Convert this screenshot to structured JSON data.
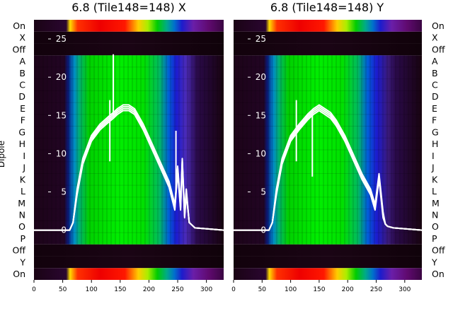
{
  "chart_data": [
    {
      "type": "heatmap",
      "title": "6.8 (Tile148=148) X",
      "ylabel": "Dipole",
      "row_labels": [
        "On",
        "X",
        "Off",
        "A",
        "B",
        "C",
        "D",
        "E",
        "F",
        "G",
        "H",
        "I",
        "J",
        "K",
        "L",
        "M",
        "N",
        "O",
        "P",
        "Off",
        "Y",
        "On"
      ],
      "xticks": [
        0,
        50,
        100,
        150,
        200,
        250,
        300
      ],
      "xlim": [
        0,
        330
      ],
      "overlay_yticks": [
        0,
        5,
        10,
        15,
        20,
        25
      ],
      "overlay_ylim": [
        -6.5,
        27.5
      ],
      "overlay_line": {
        "color": "#ffffff",
        "x": [
          0,
          62,
          68,
          75,
          85,
          100,
          115,
          130,
          138,
          145,
          155,
          165,
          175,
          190,
          205,
          220,
          235,
          245,
          250,
          255,
          258,
          262,
          265,
          270,
          280,
          330
        ],
        "y": [
          0,
          0,
          1,
          5,
          9,
          12,
          13.5,
          14.5,
          15,
          15.5,
          16,
          16,
          15.5,
          13.5,
          11,
          8.5,
          6,
          3,
          8,
          3,
          9,
          2,
          5,
          1,
          0.3,
          0
        ],
        "spikes": [
          {
            "x": 138,
            "y": 23
          },
          {
            "x": 132,
            "y": 17
          },
          {
            "x": 247,
            "y": 13
          }
        ]
      }
    },
    {
      "type": "heatmap",
      "title": "6.8 (Tile148=148) Y",
      "row_labels": [
        "On",
        "X",
        "Off",
        "A",
        "B",
        "C",
        "D",
        "E",
        "F",
        "G",
        "H",
        "I",
        "J",
        "K",
        "L",
        "M",
        "N",
        "O",
        "P",
        "Off",
        "Y",
        "On"
      ],
      "xticks": [
        0,
        50,
        100,
        150,
        200,
        250,
        300
      ],
      "xlim": [
        0,
        330
      ],
      "overlay_yticks": [
        0,
        5,
        10,
        15,
        20,
        25
      ],
      "overlay_ylim": [
        -6.5,
        27.5
      ],
      "overlay_line": {
        "color": "#ffffff",
        "x": [
          0,
          62,
          68,
          75,
          85,
          100,
          115,
          130,
          140,
          150,
          160,
          170,
          180,
          195,
          210,
          225,
          240,
          248,
          255,
          262,
          266,
          270,
          280,
          330
        ],
        "y": [
          0,
          0,
          1,
          5,
          9,
          12,
          13.5,
          14.8,
          15.5,
          16,
          15.5,
          15,
          14,
          12,
          9.5,
          7,
          5,
          3,
          7,
          2,
          0.8,
          0.5,
          0.3,
          0
        ],
        "spikes": [
          {
            "x": 110,
            "y": 17
          },
          {
            "x": 138,
            "y": 15
          }
        ]
      }
    }
  ]
}
